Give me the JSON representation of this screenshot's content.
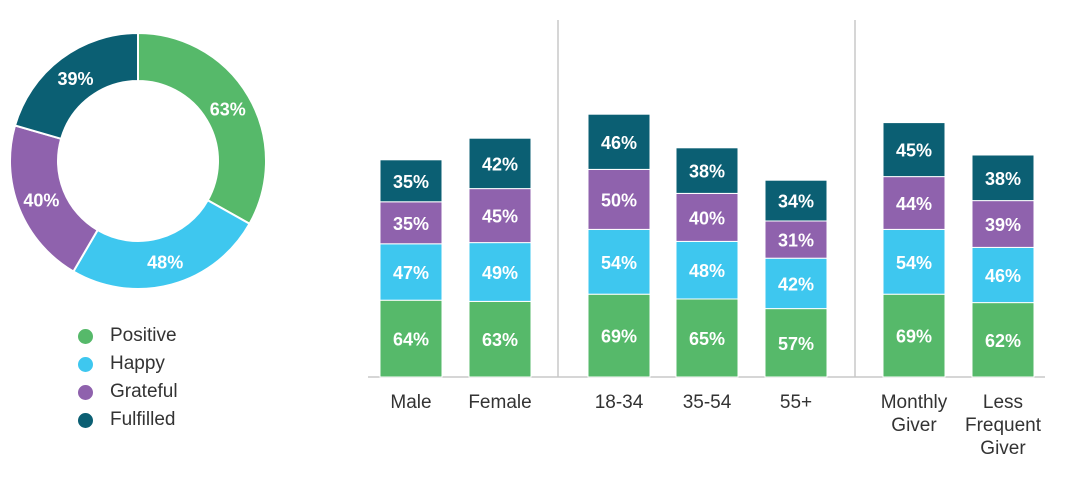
{
  "colors": {
    "Positive": "#56b96a",
    "Happy": "#3ec7ef",
    "Grateful": "#8f62ad",
    "Fulfilled": "#0b5f73"
  },
  "legend": [
    {
      "label": "Positive",
      "key": "Positive"
    },
    {
      "label": "Happy",
      "key": "Happy"
    },
    {
      "label": "Grateful",
      "key": "Grateful"
    },
    {
      "label": "Fulfilled",
      "key": "Fulfilled"
    }
  ],
  "chart_data": [
    {
      "type": "pie",
      "variant": "donut",
      "categories": [
        "Positive",
        "Happy",
        "Grateful",
        "Fulfilled"
      ],
      "values": [
        63,
        48,
        40,
        39
      ],
      "labels": [
        "63%",
        "48%",
        "40%",
        "39%"
      ]
    },
    {
      "type": "bar",
      "stacked": true,
      "categories": [
        "Male",
        "Female",
        "18-34",
        "35-54",
        "55+",
        "Monthly Giver",
        "Less Frequent Giver"
      ],
      "category_labels": [
        [
          "Male"
        ],
        [
          "Female"
        ],
        [
          "18-34"
        ],
        [
          "35-54"
        ],
        [
          "55+"
        ],
        [
          "Monthly",
          "Giver"
        ],
        [
          "Less",
          "Frequent",
          "Giver"
        ]
      ],
      "groups": [
        [
          "Male",
          "Female"
        ],
        [
          "18-34",
          "35-54",
          "55+"
        ],
        [
          "Monthly Giver",
          "Less Frequent Giver"
        ]
      ],
      "series": [
        {
          "name": "Positive",
          "values": [
            64,
            63,
            69,
            65,
            57,
            69,
            62
          ]
        },
        {
          "name": "Happy",
          "values": [
            47,
            49,
            54,
            48,
            42,
            54,
            46
          ]
        },
        {
          "name": "Grateful",
          "values": [
            35,
            45,
            50,
            40,
            31,
            44,
            39
          ]
        },
        {
          "name": "Fulfilled",
          "values": [
            35,
            42,
            46,
            38,
            34,
            45,
            38
          ]
        }
      ],
      "value_suffix": "%"
    }
  ]
}
